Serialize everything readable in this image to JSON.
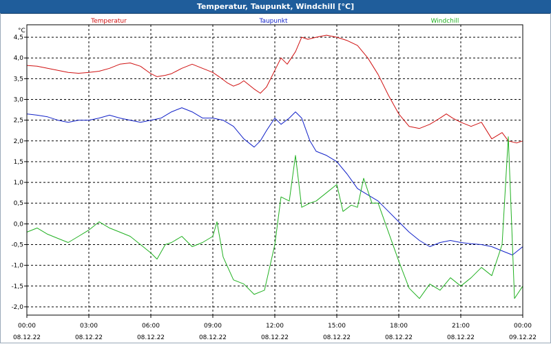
{
  "window": {
    "title": "Temperatur, Taupunkt, Windchill [°C]"
  },
  "chart_data": {
    "type": "line",
    "title": "Temperatur, Taupunkt, Windchill [°C]",
    "ylabel": "°C",
    "ylim": [
      -2.2,
      4.8
    ],
    "yticks": [
      "4,5",
      "4,0",
      "3,5",
      "3,0",
      "2,5",
      "2,0",
      "1,5",
      "1,0",
      "0,5",
      "0,0",
      "-0,5",
      "-1,0",
      "-1,5",
      "-2,0"
    ],
    "ytick_values": [
      4.5,
      4.0,
      3.5,
      3.0,
      2.5,
      2.0,
      1.5,
      1.0,
      0.5,
      0.0,
      -0.5,
      -1.0,
      -1.5,
      -2.0
    ],
    "xlim_hours": [
      0,
      24
    ],
    "xticks": [
      {
        "time": "00:00",
        "date": "08.12.22"
      },
      {
        "time": "03:00",
        "date": "08.12.22"
      },
      {
        "time": "06:00",
        "date": "08.12.22"
      },
      {
        "time": "09:00",
        "date": "08.12.22"
      },
      {
        "time": "12:00",
        "date": "08.12.22"
      },
      {
        "time": "15:00",
        "date": "08.12.22"
      },
      {
        "time": "18:00",
        "date": "08.12.22"
      },
      {
        "time": "21:00",
        "date": "08.12.22"
      },
      {
        "time": "00:00",
        "date": "09.12.22"
      }
    ],
    "grid": true,
    "legend_placement": "top",
    "series": [
      {
        "name": "Temperatur",
        "color": "#d01010",
        "points": [
          [
            0,
            3.82
          ],
          [
            0.5,
            3.8
          ],
          [
            1,
            3.75
          ],
          [
            1.5,
            3.7
          ],
          [
            2,
            3.65
          ],
          [
            2.5,
            3.63
          ],
          [
            3,
            3.65
          ],
          [
            3.5,
            3.68
          ],
          [
            4,
            3.75
          ],
          [
            4.5,
            3.85
          ],
          [
            5,
            3.88
          ],
          [
            5.5,
            3.8
          ],
          [
            6,
            3.62
          ],
          [
            6.3,
            3.55
          ],
          [
            6.7,
            3.58
          ],
          [
            7,
            3.62
          ],
          [
            7.5,
            3.75
          ],
          [
            8,
            3.85
          ],
          [
            8.5,
            3.75
          ],
          [
            9,
            3.65
          ],
          [
            9.3,
            3.55
          ],
          [
            9.7,
            3.4
          ],
          [
            10,
            3.32
          ],
          [
            10.3,
            3.38
          ],
          [
            10.5,
            3.45
          ],
          [
            11,
            3.25
          ],
          [
            11.3,
            3.15
          ],
          [
            11.6,
            3.3
          ],
          [
            12,
            3.7
          ],
          [
            12.3,
            4.0
          ],
          [
            12.6,
            3.85
          ],
          [
            13,
            4.15
          ],
          [
            13.3,
            4.5
          ],
          [
            13.6,
            4.45
          ],
          [
            14,
            4.5
          ],
          [
            14.5,
            4.55
          ],
          [
            15,
            4.5
          ],
          [
            15.5,
            4.42
          ],
          [
            16,
            4.3
          ],
          [
            16.5,
            4.0
          ],
          [
            17,
            3.6
          ],
          [
            17.5,
            3.1
          ],
          [
            18,
            2.65
          ],
          [
            18.5,
            2.35
          ],
          [
            19,
            2.3
          ],
          [
            19.5,
            2.4
          ],
          [
            20,
            2.55
          ],
          [
            20.3,
            2.65
          ],
          [
            20.6,
            2.55
          ],
          [
            21,
            2.45
          ],
          [
            21.5,
            2.35
          ],
          [
            22,
            2.45
          ],
          [
            22.5,
            2.05
          ],
          [
            23,
            2.2
          ],
          [
            23.3,
            2.0
          ],
          [
            23.7,
            1.95
          ],
          [
            24,
            2.0
          ]
        ]
      },
      {
        "name": "Taupunkt",
        "color": "#1020c8",
        "points": [
          [
            0,
            2.65
          ],
          [
            0.5,
            2.62
          ],
          [
            1,
            2.58
          ],
          [
            1.5,
            2.5
          ],
          [
            2,
            2.45
          ],
          [
            2.5,
            2.5
          ],
          [
            3,
            2.5
          ],
          [
            3.5,
            2.55
          ],
          [
            4,
            2.62
          ],
          [
            4.5,
            2.55
          ],
          [
            5,
            2.5
          ],
          [
            5.5,
            2.45
          ],
          [
            6,
            2.5
          ],
          [
            6.5,
            2.55
          ],
          [
            7,
            2.7
          ],
          [
            7.5,
            2.8
          ],
          [
            8,
            2.7
          ],
          [
            8.5,
            2.55
          ],
          [
            9,
            2.55
          ],
          [
            9.5,
            2.5
          ],
          [
            10,
            2.35
          ],
          [
            10.5,
            2.05
          ],
          [
            11,
            1.85
          ],
          [
            11.3,
            2.0
          ],
          [
            11.6,
            2.25
          ],
          [
            12,
            2.55
          ],
          [
            12.3,
            2.4
          ],
          [
            12.7,
            2.55
          ],
          [
            13,
            2.7
          ],
          [
            13.3,
            2.55
          ],
          [
            13.7,
            2.0
          ],
          [
            14,
            1.75
          ],
          [
            14.5,
            1.65
          ],
          [
            15,
            1.5
          ],
          [
            15.5,
            1.2
          ],
          [
            16,
            0.85
          ],
          [
            16.5,
            0.7
          ],
          [
            17,
            0.55
          ],
          [
            17.5,
            0.3
          ],
          [
            18,
            0.05
          ],
          [
            18.5,
            -0.2
          ],
          [
            19,
            -0.4
          ],
          [
            19.5,
            -0.55
          ],
          [
            20,
            -0.45
          ],
          [
            20.5,
            -0.4
          ],
          [
            21,
            -0.45
          ],
          [
            21.5,
            -0.48
          ],
          [
            22,
            -0.5
          ],
          [
            22.5,
            -0.55
          ],
          [
            23,
            -0.65
          ],
          [
            23.5,
            -0.75
          ],
          [
            24,
            -0.55
          ]
        ]
      },
      {
        "name": "Windchill",
        "color": "#20b020",
        "points": [
          [
            0,
            -0.2
          ],
          [
            0.5,
            -0.1
          ],
          [
            1,
            -0.25
          ],
          [
            1.5,
            -0.35
          ],
          [
            2,
            -0.45
          ],
          [
            2.5,
            -0.3
          ],
          [
            3,
            -0.15
          ],
          [
            3.5,
            0.05
          ],
          [
            4,
            -0.1
          ],
          [
            4.5,
            -0.2
          ],
          [
            5,
            -0.3
          ],
          [
            5.5,
            -0.5
          ],
          [
            6,
            -0.7
          ],
          [
            6.3,
            -0.85
          ],
          [
            6.7,
            -0.5
          ],
          [
            7,
            -0.45
          ],
          [
            7.5,
            -0.3
          ],
          [
            8,
            -0.55
          ],
          [
            8.5,
            -0.45
          ],
          [
            9,
            -0.3
          ],
          [
            9.2,
            0.05
          ],
          [
            9.5,
            -0.8
          ],
          [
            10,
            -1.35
          ],
          [
            10.5,
            -1.45
          ],
          [
            11,
            -1.7
          ],
          [
            11.5,
            -1.6
          ],
          [
            12,
            -0.5
          ],
          [
            12.3,
            0.65
          ],
          [
            12.7,
            0.55
          ],
          [
            13,
            1.65
          ],
          [
            13.3,
            0.4
          ],
          [
            13.7,
            0.5
          ],
          [
            14,
            0.55
          ],
          [
            14.5,
            0.75
          ],
          [
            15,
            0.95
          ],
          [
            15.3,
            0.3
          ],
          [
            15.7,
            0.45
          ],
          [
            16,
            0.4
          ],
          [
            16.3,
            1.1
          ],
          [
            16.7,
            0.5
          ],
          [
            17,
            0.5
          ],
          [
            17.5,
            -0.2
          ],
          [
            18,
            -0.9
          ],
          [
            18.5,
            -1.55
          ],
          [
            19,
            -1.8
          ],
          [
            19.5,
            -1.45
          ],
          [
            20,
            -1.6
          ],
          [
            20.5,
            -1.3
          ],
          [
            21,
            -1.5
          ],
          [
            21.5,
            -1.3
          ],
          [
            22,
            -1.05
          ],
          [
            22.5,
            -1.25
          ],
          [
            23,
            -0.5
          ],
          [
            23.3,
            2.1
          ],
          [
            23.6,
            -1.8
          ],
          [
            24,
            -1.5
          ]
        ]
      }
    ]
  }
}
